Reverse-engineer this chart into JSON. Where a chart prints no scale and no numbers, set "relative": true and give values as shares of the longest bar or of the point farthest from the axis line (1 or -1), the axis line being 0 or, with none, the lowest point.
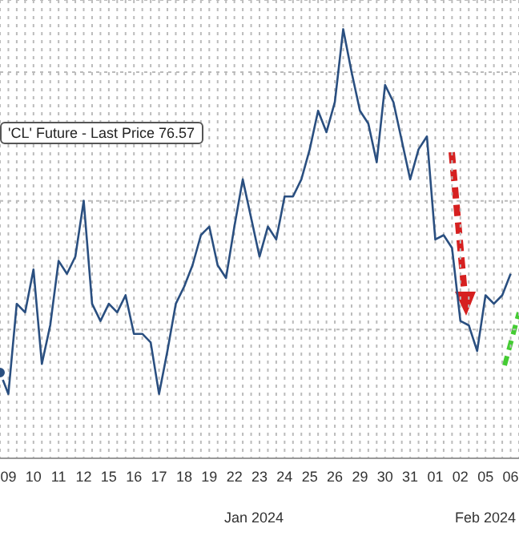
{
  "chart_data": {
    "type": "line",
    "relative": true,
    "grid": true,
    "legend": "top left",
    "marker": "none",
    "line_style": "solid",
    "categories": [
      null,
      "09",
      null,
      null,
      "10",
      null,
      null,
      "11",
      null,
      null,
      "12",
      null,
      null,
      "15",
      null,
      null,
      "16",
      null,
      null,
      "17",
      null,
      null,
      "18",
      null,
      null,
      "19",
      null,
      null,
      "22",
      null,
      null,
      "23",
      null,
      null,
      "24",
      null,
      null,
      "25",
      null,
      null,
      "26",
      null,
      null,
      "29",
      null,
      null,
      "30",
      null,
      null,
      "31",
      null,
      null,
      "01",
      null,
      null,
      "02",
      null,
      null,
      "05",
      null,
      null,
      "06",
      null
    ],
    "series": [
      {
        "name": "'CL' Future - Last Price 76.57",
        "color": "#2a4f80",
        "values": [
          0.2,
          0.15,
          0.36,
          0.34,
          0.44,
          0.22,
          0.31,
          0.46,
          0.43,
          0.47,
          0.6,
          0.36,
          0.32,
          0.36,
          0.34,
          0.38,
          0.29,
          0.29,
          0.27,
          0.15,
          0.25,
          0.36,
          0.4,
          0.45,
          0.52,
          0.54,
          0.45,
          0.42,
          0.54,
          0.65,
          0.56,
          0.47,
          0.54,
          0.51,
          0.61,
          0.61,
          0.65,
          0.72,
          0.81,
          0.76,
          0.83,
          1,
          0.9,
          0.81,
          0.78,
          0.69,
          0.87,
          0.83,
          0.74,
          0.65,
          0.72,
          0.75,
          0.51,
          0.52,
          0.49,
          0.32,
          0.31,
          0.25,
          0.38,
          0.36,
          0.38,
          0.43,
          null
        ]
      }
    ],
    "annotations": [
      "Jan 2024",
      "Feb 2024"
    ]
  }
}
